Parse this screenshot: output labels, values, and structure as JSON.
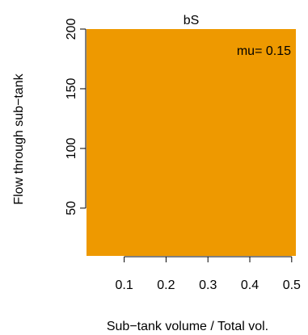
{
  "chart_data": {
    "type": "heatmap",
    "title": "bS",
    "xlabel": "Sub−tank volume / Total vol.",
    "ylabel": "Flow through sub−tank",
    "xlim": [
      0.01,
      0.51
    ],
    "ylim": [
      10,
      200
    ],
    "x_ticks": [
      0.1,
      0.2,
      0.3,
      0.4,
      0.5
    ],
    "x_tick_labels": [
      "0.1",
      "0.2",
      "0.3",
      "0.4",
      "0.5"
    ],
    "y_ticks": [
      50,
      100,
      150,
      200
    ],
    "y_tick_labels": [
      "50",
      "100",
      "150",
      "200"
    ],
    "fill_color": "#ee9900",
    "annotation": "mu= 0.15",
    "annotation_position": "top-right",
    "grid": false,
    "legend": "none"
  }
}
